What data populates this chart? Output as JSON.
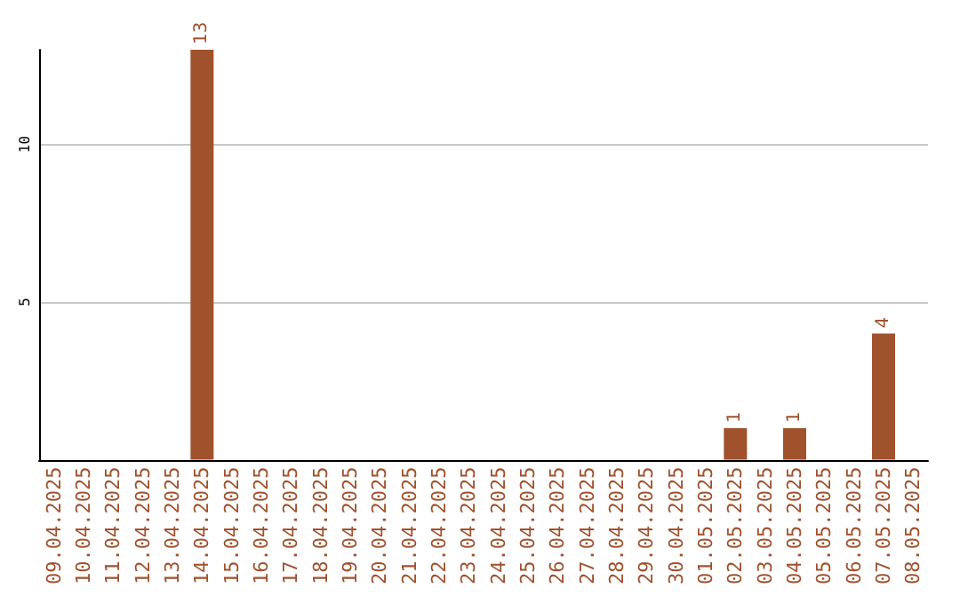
{
  "chart_data": {
    "type": "bar",
    "categories": [
      "09.04.2025",
      "10.04.2025",
      "11.04.2025",
      "12.04.2025",
      "13.04.2025",
      "14.04.2025",
      "15.04.2025",
      "16.04.2025",
      "17.04.2025",
      "18.04.2025",
      "19.04.2025",
      "20.04.2025",
      "21.04.2025",
      "22.04.2025",
      "23.04.2025",
      "24.04.2025",
      "25.04.2025",
      "26.04.2025",
      "27.04.2025",
      "28.04.2025",
      "29.04.2025",
      "30.04.2025",
      "01.05.2025",
      "02.05.2025",
      "03.05.2025",
      "04.05.2025",
      "05.05.2025",
      "06.05.2025",
      "07.05.2025",
      "08.05.2025"
    ],
    "values": [
      0,
      0,
      0,
      0,
      0,
      13,
      0,
      0,
      0,
      0,
      0,
      0,
      0,
      0,
      0,
      0,
      0,
      0,
      0,
      0,
      0,
      0,
      0,
      1,
      0,
      1,
      0,
      0,
      4,
      0
    ],
    "value_labels": [
      null,
      null,
      null,
      null,
      null,
      "13",
      null,
      null,
      null,
      null,
      null,
      null,
      null,
      null,
      null,
      null,
      null,
      null,
      null,
      null,
      null,
      null,
      null,
      "1",
      null,
      "1",
      null,
      null,
      "4",
      null
    ],
    "color": "#a0522d",
    "ylim": [
      0,
      13
    ],
    "yticks": [
      5,
      10
    ],
    "grid": "y"
  }
}
